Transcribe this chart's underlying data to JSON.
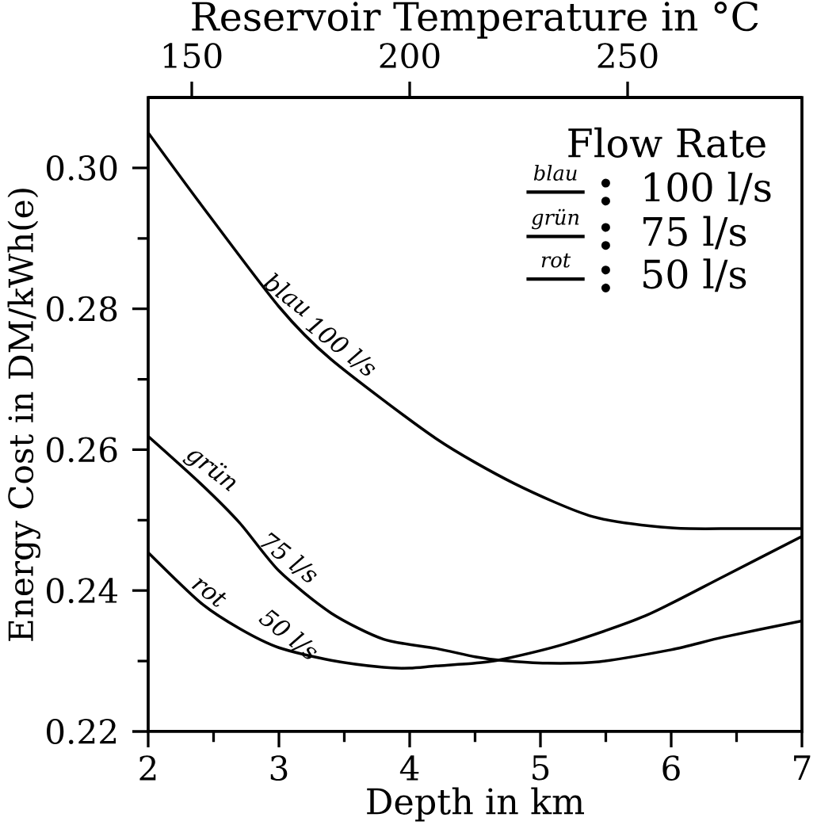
{
  "chart_data": {
    "type": "line",
    "xlabel": "Depth in km",
    "ylabel": "Energy Cost in DM/kWh(e)",
    "x2label": "Reservoir Temperature in °C",
    "legend_title": "Flow Rate",
    "legend": "top right",
    "xlim": [
      2,
      7
    ],
    "xticks": [
      2,
      {
        "value": 2.5,
        "label": null
      },
      3,
      {
        "value": 3.5,
        "label": null
      },
      4,
      {
        "value": 4.5,
        "label": null
      },
      5,
      {
        "value": 5.5,
        "label": null
      },
      6,
      {
        "value": 6.5,
        "label": null
      },
      7
    ],
    "ylim": [
      0.22,
      0.31
    ],
    "yticks": [
      {
        "value": 0.22,
        "label": "0.22"
      },
      {
        "value": 0.23,
        "label": null
      },
      {
        "value": 0.24,
        "label": "0.24"
      },
      {
        "value": 0.25,
        "label": null
      },
      {
        "value": 0.26,
        "label": "0.26"
      },
      {
        "value": 0.27,
        "label": null
      },
      {
        "value": 0.28,
        "label": "0.28"
      },
      {
        "value": 0.29,
        "label": null
      },
      {
        "value": 0.3,
        "label": "0.30"
      }
    ],
    "x2lim": [
      140,
      290
    ],
    "x2ticks": [
      150,
      200,
      250
    ],
    "series": [
      {
        "name": "100 l/s",
        "color": "#000000",
        "x": [
          2.0,
          2.4,
          3.0,
          3.4,
          4.2,
          4.8,
          5.4,
          6.0,
          6.5,
          7.0
        ],
        "values": [
          0.305,
          0.2949,
          0.2803,
          0.2728,
          0.2616,
          0.2552,
          0.2505,
          0.2489,
          0.2488,
          0.2488
        ]
      },
      {
        "name": "75 l/s",
        "color": "#000000",
        "x": [
          2.0,
          2.4,
          2.7,
          3.0,
          3.4,
          3.8,
          4.2,
          4.5,
          4.7,
          5.05,
          5.45,
          6.0,
          6.4,
          7.0
        ],
        "values": [
          0.2619,
          0.2552,
          0.2496,
          0.2428,
          0.2368,
          0.2331,
          0.2318,
          0.2306,
          0.2301,
          0.2297,
          0.2299,
          0.2316,
          0.2334,
          0.2357
        ]
      },
      {
        "name": "50 l/s",
        "color": "#000000",
        "x": [
          2.0,
          2.4,
          2.7,
          3.0,
          3.4,
          3.8,
          4.0,
          4.2,
          4.5,
          4.7,
          5.2,
          5.8,
          6.4,
          7.0
        ],
        "values": [
          0.2454,
          0.2383,
          0.2346,
          0.2319,
          0.2301,
          0.2291,
          0.229,
          0.2293,
          0.2297,
          0.2302,
          0.2325,
          0.2364,
          0.242,
          0.2477
        ]
      }
    ],
    "annotations": [
      {
        "text": "blau",
        "x": 3.0,
        "y": 0.2803
      },
      {
        "text": "100 l/s",
        "x": 3.4,
        "y": 0.2728
      },
      {
        "text": "grün",
        "x": 2.4,
        "y": 0.2552
      },
      {
        "text": "75 l/s",
        "x": 3.0,
        "y": 0.2428
      },
      {
        "text": "rot",
        "x": 2.4,
        "y": 0.2383
      },
      {
        "text": "50 l/s",
        "x": 3.0,
        "y": 0.2319
      },
      "blau",
      "grün",
      "rot"
    ]
  }
}
